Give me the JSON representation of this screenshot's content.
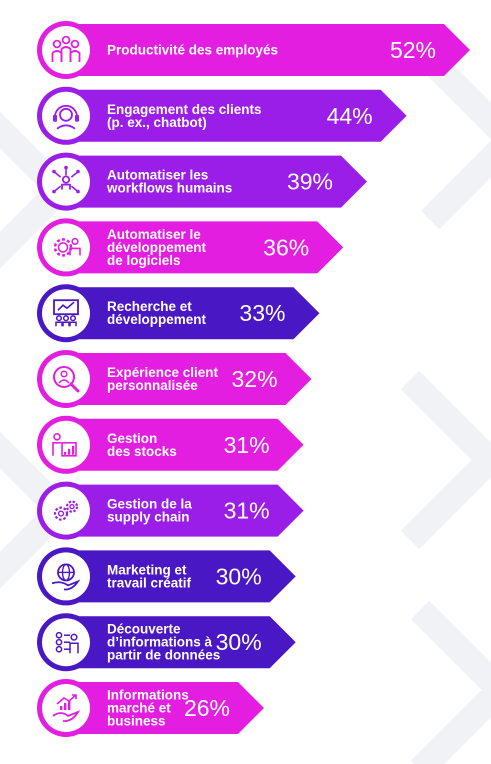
{
  "chart_data": {
    "type": "bar",
    "orientation": "horizontal",
    "unit": "%",
    "colors": {
      "magenta": "#e41ee0",
      "violet": "#9b1ee8",
      "indigo": "#4a17c4"
    },
    "bars": [
      {
        "label_lines": [
          "Productivité des employés"
        ],
        "value": 52,
        "value_label": "52%",
        "color": "magenta",
        "icon": "employees-icon"
      },
      {
        "label_lines": [
          "Engagement des clients",
          "(p. ex., chatbot)"
        ],
        "value": 44,
        "value_label": "44%",
        "color": "violet",
        "icon": "headset-agent-icon"
      },
      {
        "label_lines": [
          "Automatiser les",
          "workflows humains"
        ],
        "value": 39,
        "value_label": "39%",
        "color": "violet",
        "icon": "workflow-people-icon"
      },
      {
        "label_lines": [
          "Automatiser le",
          "développement",
          "de logiciels"
        ],
        "value": 36,
        "value_label": "36%",
        "color": "magenta",
        "icon": "gear-developer-icon"
      },
      {
        "label_lines": [
          "Recherche et",
          "développement"
        ],
        "value": 33,
        "value_label": "33%",
        "color": "indigo",
        "icon": "presentation-board-icon"
      },
      {
        "label_lines": [
          "Expérience client",
          "personnalisée"
        ],
        "value": 32,
        "value_label": "32%",
        "color": "magenta",
        "icon": "search-person-icon"
      },
      {
        "label_lines": [
          "Gestion",
          "des stocks"
        ],
        "value": 31,
        "value_label": "31%",
        "color": "magenta",
        "icon": "stock-chart-icon"
      },
      {
        "label_lines": [
          "Gestion de la",
          "supply chain"
        ],
        "value": 31,
        "value_label": "31%",
        "color": "violet",
        "icon": "gears-icon"
      },
      {
        "label_lines": [
          "Marketing et",
          "travail créatif"
        ],
        "value": 30,
        "value_label": "30%",
        "color": "indigo",
        "icon": "globe-hand-icon"
      },
      {
        "label_lines": [
          "Découverte",
          "d’informations à",
          "partir de données"
        ],
        "value": 30,
        "value_label": "30%",
        "color": "indigo",
        "icon": "data-discovery-icon"
      },
      {
        "label_lines": [
          "Informations",
          "marché et",
          "business"
        ],
        "value": 26,
        "value_label": "26%",
        "color": "magenta",
        "icon": "market-growth-icon"
      }
    ]
  }
}
